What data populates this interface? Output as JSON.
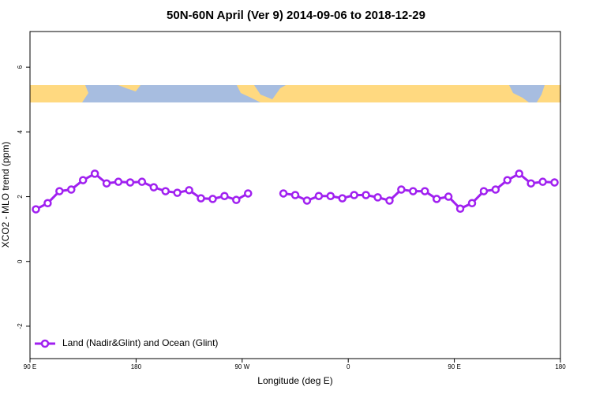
{
  "chart_data": {
    "type": "line",
    "title": "50N-60N April (Ver 9)   2014-09-06 to 2018-12-29",
    "xlabel": "Longitude (deg E)",
    "ylabel": "XCO2 - MLO trend (ppm)",
    "x": [
      95,
      105,
      115,
      125,
      135,
      145,
      155,
      165,
      175,
      185,
      195,
      205,
      215,
      225,
      235,
      245,
      255,
      265,
      275,
      285,
      295,
      305,
      315,
      325,
      335,
      345,
      355,
      365,
      375,
      385,
      395,
      405,
      415,
      425,
      435,
      445,
      455,
      465,
      475,
      485,
      495,
      505,
      515,
      525,
      535
    ],
    "series": [
      {
        "name": "Land (Nadir&Glint) and Ocean (Glint)",
        "color": "#a020f0",
        "values": [
          1.61,
          1.8,
          2.17,
          2.22,
          2.51,
          2.71,
          2.41,
          2.46,
          2.44,
          2.46,
          2.29,
          2.17,
          2.12,
          2.2,
          1.95,
          1.93,
          2.02,
          1.9,
          2.1,
          null,
          null,
          2.1,
          2.05,
          1.88,
          2.02,
          2.02,
          1.95,
          2.05,
          2.05,
          1.98,
          1.88,
          2.22,
          2.17,
          2.17,
          1.93,
          2.0,
          1.63,
          1.8,
          2.17,
          2.22,
          2.51,
          2.71,
          2.41,
          2.46,
          2.44
        ]
      }
    ],
    "xlim": [
      90,
      540
    ],
    "ylim": [
      -3.0,
      7.1
    ],
    "xticks": [
      {
        "value": 90,
        "label": "90 E"
      },
      {
        "value": 180,
        "label": "180"
      },
      {
        "value": 270,
        "label": "90 W"
      },
      {
        "value": 360,
        "label": "0"
      },
      {
        "value": 450,
        "label": "90 E"
      },
      {
        "value": 540,
        "label": "180"
      }
    ],
    "yticks": [
      -2,
      0,
      2,
      4,
      6
    ],
    "legend": "bottom-left"
  }
}
